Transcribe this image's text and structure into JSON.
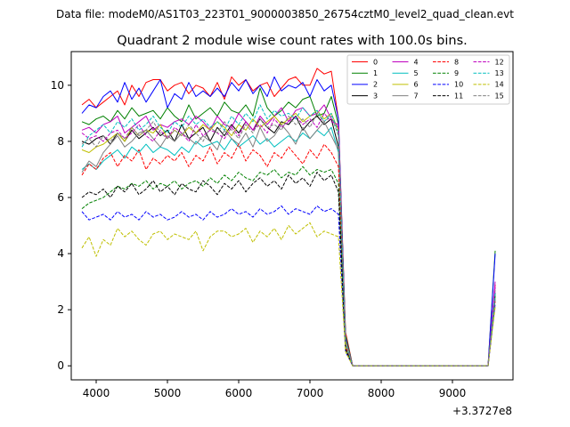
{
  "chart_data": {
    "type": "line",
    "suptitle": "Data file: modeM0/AS1T03_223T01_9000003850_26754cztM0_level2_quad_clean.evt",
    "title": "Quadrant 2 module wise count rates with 100.0s bins.",
    "xlabel": "",
    "ylabel": "",
    "x_offset_label": "+3.3727e8",
    "xlim": [
      3650,
      9850
    ],
    "ylim": [
      -0.5,
      11.2
    ],
    "xticks": [
      "4000",
      "5000",
      "6000",
      "7000",
      "8000",
      "9000"
    ],
    "yticks": [
      "0",
      "2",
      "4",
      "6",
      "8",
      "10"
    ],
    "grid": false,
    "legend_position": "top-right",
    "legend_columns": 4,
    "x": [
      3800,
      3900,
      4000,
      4100,
      4200,
      4300,
      4400,
      4500,
      4600,
      4700,
      4800,
      4900,
      5000,
      5100,
      5200,
      5300,
      5400,
      5500,
      5600,
      5700,
      5800,
      5900,
      6000,
      6100,
      6200,
      6300,
      6400,
      6500,
      6600,
      6700,
      6800,
      6900,
      7000,
      7100,
      7200,
      7300,
      7400,
      7500,
      7600,
      7700,
      7800,
      7900,
      8000,
      8100,
      8200,
      8300,
      8400,
      8500,
      8600,
      8700,
      8800,
      8900,
      9000,
      9100,
      9200,
      9300,
      9400,
      9500,
      9600
    ],
    "series": [
      {
        "name": "0",
        "color": "#ff0000",
        "dash": false,
        "values": [
          9.3,
          9.5,
          9.2,
          9.4,
          9.6,
          9.8,
          9.3,
          10.0,
          9.6,
          10.1,
          10.2,
          10.2,
          9.8,
          10.0,
          10.1,
          9.7,
          10.0,
          9.9,
          9.6,
          10.1,
          9.5,
          10.3,
          10.0,
          10.2,
          9.8,
          10.0,
          10.1,
          9.6,
          9.9,
          10.2,
          10.3,
          10.0,
          10.0,
          10.6,
          10.4,
          10.5,
          8.8,
          1.2,
          0,
          0,
          0,
          0,
          0,
          0,
          0,
          0,
          0,
          0,
          0,
          0,
          0,
          0,
          0,
          0,
          0,
          0,
          0,
          0,
          2.9
        ]
      },
      {
        "name": "1",
        "color": "#008000",
        "dash": false,
        "values": [
          8.7,
          8.6,
          8.8,
          8.9,
          8.7,
          9.1,
          8.8,
          9.2,
          8.9,
          9.0,
          9.1,
          8.8,
          9.2,
          8.9,
          8.7,
          9.3,
          8.8,
          9.0,
          9.2,
          8.9,
          9.4,
          9.1,
          9.0,
          9.3,
          8.9,
          9.9,
          9.2,
          8.9,
          9.1,
          9.4,
          9.2,
          9.5,
          9.6,
          8.9,
          9.0,
          9.6,
          8.6,
          1.1,
          0,
          0,
          0,
          0,
          0,
          0,
          0,
          0,
          0,
          0,
          0,
          0,
          0,
          0,
          0,
          0,
          0,
          0,
          0,
          0,
          4.1
        ]
      },
      {
        "name": "2",
        "color": "#0000ff",
        "dash": false,
        "values": [
          9.0,
          9.3,
          9.2,
          9.6,
          9.8,
          9.4,
          10.1,
          9.5,
          9.9,
          9.4,
          9.8,
          10.2,
          9.2,
          9.7,
          9.5,
          10.1,
          9.6,
          9.8,
          9.6,
          9.9,
          9.6,
          10.1,
          9.8,
          10.2,
          9.7,
          10.0,
          9.6,
          10.3,
          9.8,
          10.0,
          9.9,
          10.1,
          9.6,
          10.2,
          9.8,
          10.0,
          8.8,
          1.0,
          0,
          0,
          0,
          0,
          0,
          0,
          0,
          0,
          0,
          0,
          0,
          0,
          0,
          0,
          0,
          0,
          0,
          0,
          0,
          0,
          4.0
        ]
      },
      {
        "name": "3",
        "color": "#000000",
        "dash": false,
        "values": [
          8.0,
          7.9,
          8.1,
          8.2,
          7.9,
          8.3,
          8.0,
          8.4,
          8.1,
          8.3,
          8.5,
          8.2,
          8.4,
          8.0,
          8.6,
          8.1,
          8.3,
          8.5,
          8.0,
          8.5,
          8.2,
          8.6,
          8.3,
          8.7,
          8.4,
          8.8,
          8.5,
          8.3,
          8.7,
          8.6,
          8.9,
          8.4,
          8.7,
          8.9,
          8.6,
          8.8,
          7.8,
          0.8,
          0,
          0,
          0,
          0,
          0,
          0,
          0,
          0,
          0,
          0,
          0,
          0,
          0,
          0,
          0,
          0,
          0,
          0,
          0,
          0,
          2.6
        ]
      },
      {
        "name": "4",
        "color": "#bf00bf",
        "dash": false,
        "values": [
          8.4,
          8.5,
          8.3,
          8.6,
          8.7,
          8.9,
          8.3,
          8.5,
          8.7,
          8.9,
          8.4,
          8.6,
          8.5,
          8.7,
          8.8,
          8.6,
          8.9,
          8.7,
          8.4,
          8.9,
          8.6,
          8.5,
          9.0,
          8.7,
          8.4,
          8.9,
          8.6,
          8.9,
          9.2,
          8.7,
          9.1,
          9.2,
          8.9,
          9.0,
          9.3,
          8.8,
          8.5,
          0.9,
          0,
          0,
          0,
          0,
          0,
          0,
          0,
          0,
          0,
          0,
          0,
          0,
          0,
          0,
          0,
          0,
          0,
          0,
          0,
          0,
          3.0
        ]
      },
      {
        "name": "5",
        "color": "#00bfbf",
        "dash": false,
        "values": [
          7.0,
          7.2,
          7.0,
          7.3,
          7.5,
          7.7,
          7.4,
          7.8,
          7.6,
          7.9,
          7.6,
          7.8,
          7.7,
          7.5,
          7.8,
          7.6,
          8.0,
          7.8,
          7.9,
          8.0,
          7.7,
          8.1,
          7.8,
          8.0,
          8.2,
          7.9,
          8.1,
          7.8,
          8.0,
          8.2,
          8.0,
          8.3,
          8.1,
          8.4,
          8.2,
          8.5,
          7.6,
          0.8,
          0,
          0,
          0,
          0,
          0,
          0,
          0,
          0,
          0,
          0,
          0,
          0,
          0,
          0,
          0,
          0,
          0,
          0,
          0,
          0,
          2.5
        ]
      },
      {
        "name": "6",
        "color": "#bfbf00",
        "dash": false,
        "values": [
          7.7,
          7.6,
          7.8,
          7.9,
          8.1,
          8.3,
          8.0,
          8.5,
          8.2,
          8.4,
          8.3,
          8.6,
          8.1,
          8.4,
          8.2,
          8.5,
          8.3,
          8.6,
          8.4,
          8.7,
          8.5,
          8.2,
          8.6,
          8.4,
          8.8,
          8.5,
          8.7,
          8.9,
          8.6,
          8.8,
          9.0,
          8.7,
          8.9,
          9.1,
          8.8,
          9.0,
          8.4,
          0.9,
          0,
          0,
          0,
          0,
          0,
          0,
          0,
          0,
          0,
          0,
          0,
          0,
          0,
          0,
          0,
          0,
          0,
          0,
          0,
          0,
          2.5
        ]
      },
      {
        "name": "7",
        "color": "#808080",
        "dash": false,
        "values": [
          6.9,
          7.3,
          7.1,
          7.6,
          7.9,
          8.2,
          7.8,
          8.0,
          8.3,
          8.4,
          8.1,
          7.8,
          8.2,
          8.0,
          8.3,
          8.1,
          7.9,
          8.2,
          8.0,
          7.7,
          8.4,
          8.1,
          7.9,
          8.3,
          7.8,
          8.5,
          8.0,
          8.2,
          8.6,
          8.3,
          7.9,
          8.5,
          8.1,
          8.4,
          8.7,
          8.2,
          7.7,
          0.8,
          0,
          0,
          0,
          0,
          0,
          0,
          0,
          0,
          0,
          0,
          0,
          0,
          0,
          0,
          0,
          0,
          0,
          0,
          0,
          0,
          2.7
        ]
      },
      {
        "name": "8",
        "color": "#ff0000",
        "dash": true,
        "values": [
          6.8,
          7.2,
          7.0,
          7.4,
          7.6,
          7.1,
          7.5,
          7.3,
          7.7,
          7.0,
          7.4,
          7.2,
          7.5,
          7.3,
          7.6,
          7.1,
          7.5,
          7.3,
          7.8,
          7.2,
          7.6,
          7.4,
          7.9,
          7.3,
          7.7,
          7.5,
          7.1,
          7.6,
          7.4,
          7.8,
          7.5,
          7.2,
          7.7,
          7.4,
          7.9,
          7.6,
          7.1,
          0.7,
          0,
          0,
          0,
          0,
          0,
          0,
          0,
          0,
          0,
          0,
          0,
          0,
          0,
          0,
          0,
          0,
          0,
          0,
          0,
          0,
          2.3
        ]
      },
      {
        "name": "9",
        "color": "#008000",
        "dash": true,
        "values": [
          5.6,
          5.8,
          5.9,
          6.0,
          6.2,
          6.4,
          6.3,
          6.5,
          6.4,
          6.6,
          6.3,
          6.5,
          6.4,
          6.6,
          6.3,
          6.5,
          6.6,
          6.4,
          6.7,
          6.5,
          6.8,
          6.6,
          6.9,
          6.7,
          6.6,
          6.9,
          6.8,
          7.0,
          6.7,
          6.9,
          6.8,
          7.1,
          6.8,
          7.0,
          6.9,
          7.0,
          6.5,
          0.6,
          0,
          0,
          0,
          0,
          0,
          0,
          0,
          0,
          0,
          0,
          0,
          0,
          0,
          0,
          0,
          0,
          0,
          0,
          0,
          0,
          2.5
        ]
      },
      {
        "name": "10",
        "color": "#0000ff",
        "dash": true,
        "values": [
          5.5,
          5.2,
          5.3,
          5.4,
          5.2,
          5.5,
          5.3,
          5.4,
          5.2,
          5.5,
          5.3,
          5.4,
          5.2,
          5.3,
          5.5,
          5.3,
          5.4,
          5.2,
          5.5,
          5.3,
          5.4,
          5.6,
          5.4,
          5.5,
          5.3,
          5.6,
          5.4,
          5.5,
          5.7,
          5.4,
          5.6,
          5.5,
          5.4,
          5.7,
          5.5,
          5.6,
          5.4,
          0.5,
          0,
          0,
          0,
          0,
          0,
          0,
          0,
          0,
          0,
          0,
          0,
          0,
          0,
          0,
          0,
          0,
          0,
          0,
          0,
          0,
          2.2
        ]
      },
      {
        "name": "11",
        "color": "#000000",
        "dash": true,
        "values": [
          6.0,
          6.2,
          6.1,
          6.3,
          6.0,
          6.4,
          6.2,
          6.5,
          6.1,
          6.3,
          6.6,
          6.2,
          6.4,
          6.1,
          6.5,
          6.3,
          6.2,
          6.6,
          6.4,
          6.1,
          6.5,
          6.3,
          6.6,
          6.2,
          6.5,
          6.7,
          6.4,
          6.6,
          6.3,
          6.8,
          6.5,
          6.7,
          6.4,
          6.9,
          6.6,
          6.8,
          6.2,
          0.6,
          0,
          0,
          0,
          0,
          0,
          0,
          0,
          0,
          0,
          0,
          0,
          0,
          0,
          0,
          0,
          0,
          0,
          0,
          0,
          0,
          2.4
        ]
      },
      {
        "name": "12",
        "color": "#bf00bf",
        "dash": true,
        "values": [
          8.3,
          8.1,
          8.2,
          8.0,
          8.3,
          8.4,
          8.1,
          8.3,
          8.6,
          8.2,
          8.0,
          8.4,
          8.1,
          8.5,
          8.3,
          8.0,
          8.6,
          8.2,
          8.4,
          8.3,
          8.1,
          8.5,
          8.2,
          8.7,
          8.4,
          8.6,
          8.3,
          8.8,
          8.5,
          8.7,
          8.9,
          8.6,
          8.8,
          8.5,
          9.0,
          8.7,
          8.6,
          0.8,
          0,
          0,
          0,
          0,
          0,
          0,
          0,
          0,
          0,
          0,
          0,
          0,
          0,
          0,
          0,
          0,
          0,
          0,
          0,
          0,
          2.8
        ]
      },
      {
        "name": "13",
        "color": "#00bfbf",
        "dash": true,
        "values": [
          7.8,
          8.2,
          8.4,
          8.6,
          8.3,
          8.7,
          8.5,
          8.8,
          8.4,
          8.6,
          8.9,
          8.5,
          8.3,
          8.7,
          8.5,
          8.9,
          8.6,
          8.8,
          8.5,
          8.7,
          8.4,
          8.9,
          8.6,
          9.0,
          8.7,
          9.3,
          8.8,
          9.1,
          8.9,
          9.0,
          8.8,
          9.2,
          8.9,
          9.1,
          8.7,
          9.0,
          8.3,
          0.8,
          0,
          0,
          0,
          0,
          0,
          0,
          0,
          0,
          0,
          0,
          0,
          0,
          0,
          0,
          0,
          0,
          0,
          0,
          0,
          0,
          2.6
        ]
      },
      {
        "name": "14",
        "color": "#bfbf00",
        "dash": true,
        "values": [
          4.2,
          4.6,
          3.9,
          4.5,
          4.3,
          4.9,
          4.6,
          4.8,
          4.5,
          4.3,
          4.7,
          4.8,
          4.5,
          4.7,
          4.6,
          4.5,
          4.8,
          4.1,
          4.6,
          4.8,
          4.8,
          4.6,
          4.7,
          4.9,
          4.4,
          4.8,
          4.6,
          4.9,
          4.5,
          5.0,
          4.7,
          4.9,
          5.1,
          4.6,
          4.8,
          4.7,
          4.6,
          0.5,
          0,
          0,
          0,
          0,
          0,
          0,
          0,
          0,
          0,
          0,
          0,
          0,
          0,
          0,
          0,
          0,
          0,
          0,
          0,
          0,
          2.1
        ]
      },
      {
        "name": "15",
        "color": "#808080",
        "dash": true,
        "values": [
          7.9,
          8.1,
          7.8,
          8.2,
          8.0,
          8.3,
          8.1,
          8.5,
          8.2,
          8.4,
          8.7,
          8.3,
          8.1,
          8.4,
          8.2,
          8.6,
          8.3,
          8.0,
          8.5,
          8.3,
          8.7,
          8.4,
          8.1,
          8.6,
          8.3,
          8.8,
          8.5,
          8.6,
          8.4,
          8.9,
          8.6,
          8.8,
          8.5,
          9.0,
          8.7,
          8.9,
          8.2,
          0.8,
          0,
          0,
          0,
          0,
          0,
          0,
          0,
          0,
          0,
          0,
          0,
          0,
          0,
          0,
          0,
          0,
          0,
          0,
          0,
          0,
          2.4
        ]
      }
    ]
  }
}
